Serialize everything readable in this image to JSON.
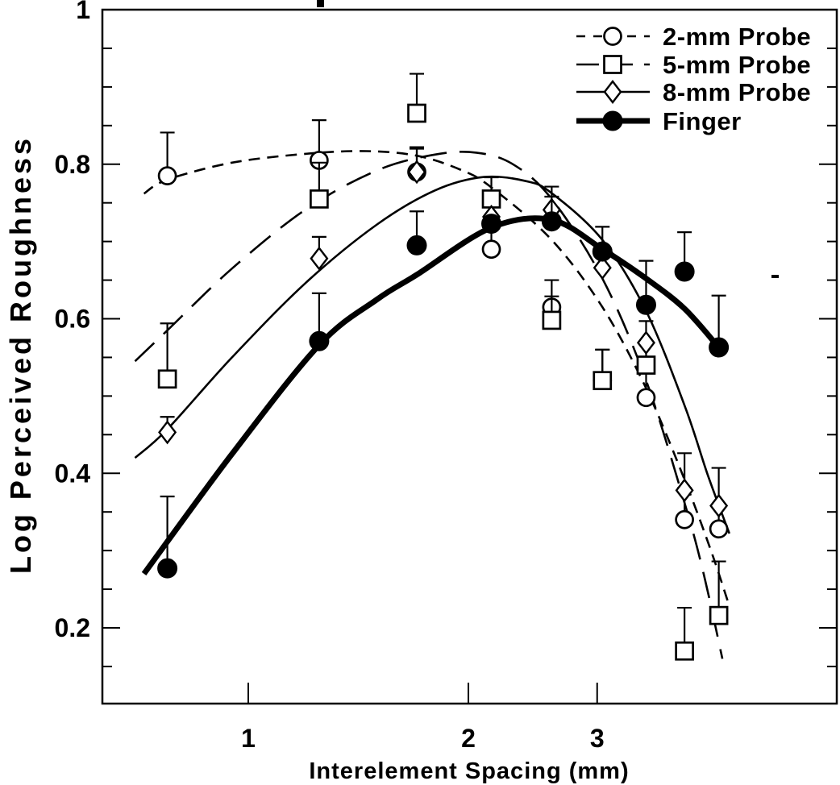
{
  "figure": {
    "background": "#ffffff",
    "ink_color": "#000000"
  },
  "chart_data": {
    "type": "scatter",
    "title": "",
    "xlabel": "Interelement Spacing (mm)",
    "ylabel": "Log Perceived Roughness",
    "x_scale": "log",
    "y_scale": "linear",
    "xlim": [
      0.63,
      6.4
    ],
    "ylim": [
      0.1,
      1.0
    ],
    "grid": false,
    "legend_position": "top-right",
    "xticks": [
      {
        "value": 1,
        "label": "1"
      },
      {
        "value": 2,
        "label": "2"
      },
      {
        "value": 3,
        "label": "3"
      }
    ],
    "yticks": [
      {
        "value": 1.0,
        "label": "1"
      },
      {
        "value": 0.8,
        "label": "0.8"
      },
      {
        "value": 0.6,
        "label": "0.6"
      },
      {
        "value": 0.4,
        "label": "0.4"
      },
      {
        "value": 0.2,
        "label": "0.2"
      }
    ],
    "y_minor_tick_step": 0.05,
    "x_values": [
      0.775,
      1.25,
      1.7,
      2.15,
      2.6,
      3.05,
      3.5,
      3.95,
      4.4
    ],
    "series": [
      {
        "name": "2-mm Probe",
        "marker": "open-circle",
        "line_style": "short-dash",
        "line_width": "thin",
        "y": [
          0.785,
          0.805,
          0.79,
          0.69,
          0.615,
          0.52,
          0.498,
          0.34,
          0.328
        ],
        "err_up": [
          0.056,
          0.052,
          0.03,
          0.034,
          0.035,
          0.04,
          0.044,
          0.041,
          0.031
        ],
        "fit_curve": [
          [
            0.72,
            0.762
          ],
          [
            0.775,
            0.78
          ],
          [
            0.95,
            0.802
          ],
          [
            1.2,
            0.8135
          ],
          [
            1.45,
            0.817
          ],
          [
            1.7,
            0.811
          ],
          [
            1.95,
            0.793
          ],
          [
            2.15,
            0.77
          ],
          [
            2.6,
            0.702
          ],
          [
            3.05,
            0.615
          ],
          [
            3.5,
            0.51
          ],
          [
            3.95,
            0.392
          ],
          [
            4.3,
            0.298
          ],
          [
            4.55,
            0.228
          ]
        ]
      },
      {
        "name": "5-mm Probe",
        "marker": "open-square",
        "line_style": "long-dash",
        "line_width": "thin",
        "y": [
          0.522,
          0.755,
          0.866,
          0.755,
          0.598,
          0.52,
          0.54,
          0.17,
          0.216
        ],
        "err_up": [
          0.072,
          0.047,
          0.051,
          0.028,
          0.031,
          0.04,
          0.029,
          0.056,
          0.07
        ],
        "fit_curve": [
          [
            0.7,
            0.545
          ],
          [
            0.775,
            0.585
          ],
          [
            0.95,
            0.665
          ],
          [
            1.2,
            0.742
          ],
          [
            1.5,
            0.792
          ],
          [
            1.8,
            0.8125
          ],
          [
            2.05,
            0.815
          ],
          [
            2.3,
            0.8
          ],
          [
            2.6,
            0.755
          ],
          [
            3.05,
            0.652
          ],
          [
            3.5,
            0.52
          ],
          [
            3.95,
            0.362
          ],
          [
            4.2,
            0.268
          ],
          [
            4.45,
            0.16
          ]
        ]
      },
      {
        "name": "8-mm Probe",
        "marker": "open-diamond",
        "line_style": "solid",
        "line_width": "thin",
        "y": [
          0.453,
          0.678,
          0.79,
          0.732,
          0.741,
          0.666,
          0.569,
          0.378,
          0.358
        ],
        "err_up": [
          0.02,
          0.028,
          0.032,
          0.0,
          0.017,
          0.0,
          0.028,
          0.048,
          0.049
        ],
        "fit_curve": [
          [
            0.7,
            0.42
          ],
          [
            0.775,
            0.457
          ],
          [
            0.95,
            0.55
          ],
          [
            1.2,
            0.647
          ],
          [
            1.5,
            0.722
          ],
          [
            1.8,
            0.766
          ],
          [
            2.1,
            0.7835
          ],
          [
            2.4,
            0.778
          ],
          [
            2.6,
            0.7625
          ],
          [
            3.05,
            0.702
          ],
          [
            3.5,
            0.61
          ],
          [
            3.95,
            0.488
          ],
          [
            4.25,
            0.398
          ],
          [
            4.55,
            0.322
          ]
        ]
      },
      {
        "name": "Finger",
        "marker": "filled-circle",
        "line_style": "solid",
        "line_width": "thick",
        "y": [
          0.277,
          0.571,
          0.695,
          0.723,
          0.726,
          0.687,
          0.618,
          0.661,
          0.563
        ],
        "err_up": [
          0.093,
          0.062,
          0.044,
          0.0,
          0.045,
          0.032,
          0.057,
          0.051,
          0.067
        ],
        "fit_curve": [
          [
            0.72,
            0.27
          ],
          [
            0.95,
            0.425
          ],
          [
            1.25,
            0.566
          ],
          [
            1.5,
            0.625
          ],
          [
            1.7,
            0.657
          ],
          [
            2.15,
            0.718
          ],
          [
            2.6,
            0.728
          ],
          [
            3.05,
            0.69
          ],
          [
            3.5,
            0.652
          ],
          [
            3.95,
            0.613
          ],
          [
            4.4,
            0.563
          ]
        ]
      }
    ]
  }
}
